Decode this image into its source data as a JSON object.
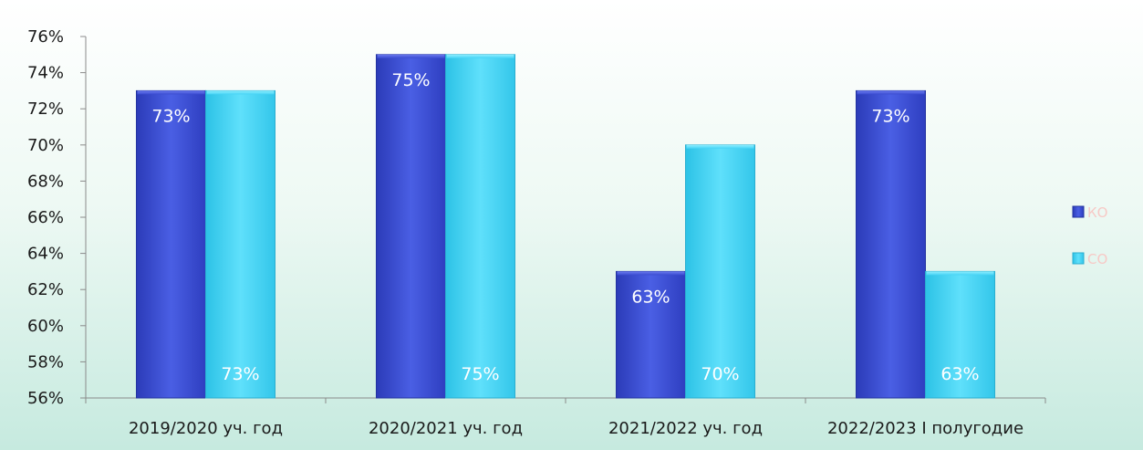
{
  "chart_data": {
    "type": "bar",
    "categories": [
      "2019/2020 уч. год",
      "2020/2021 уч. год",
      "2021/2022 уч. год",
      "2022/2023 I полугодие"
    ],
    "series": [
      {
        "name": "КО",
        "values": [
          73,
          75,
          63,
          73
        ],
        "labels": [
          "73%",
          "75%",
          "63%",
          "73%"
        ],
        "color": "#3f52d6"
      },
      {
        "name": "СО",
        "values": [
          73,
          75,
          70,
          63
        ],
        "labels": [
          "73%",
          "75%",
          "70%",
          "63%"
        ],
        "color": "#45d3f5"
      }
    ],
    "y_ticks": [
      "56%",
      "58%",
      "60%",
      "62%",
      "64%",
      "66%",
      "68%",
      "70%",
      "72%",
      "74%",
      "76%"
    ],
    "ylim": [
      56,
      76
    ],
    "title": "",
    "xlabel": "",
    "ylabel": "",
    "grid": false,
    "legend_position": "right"
  }
}
